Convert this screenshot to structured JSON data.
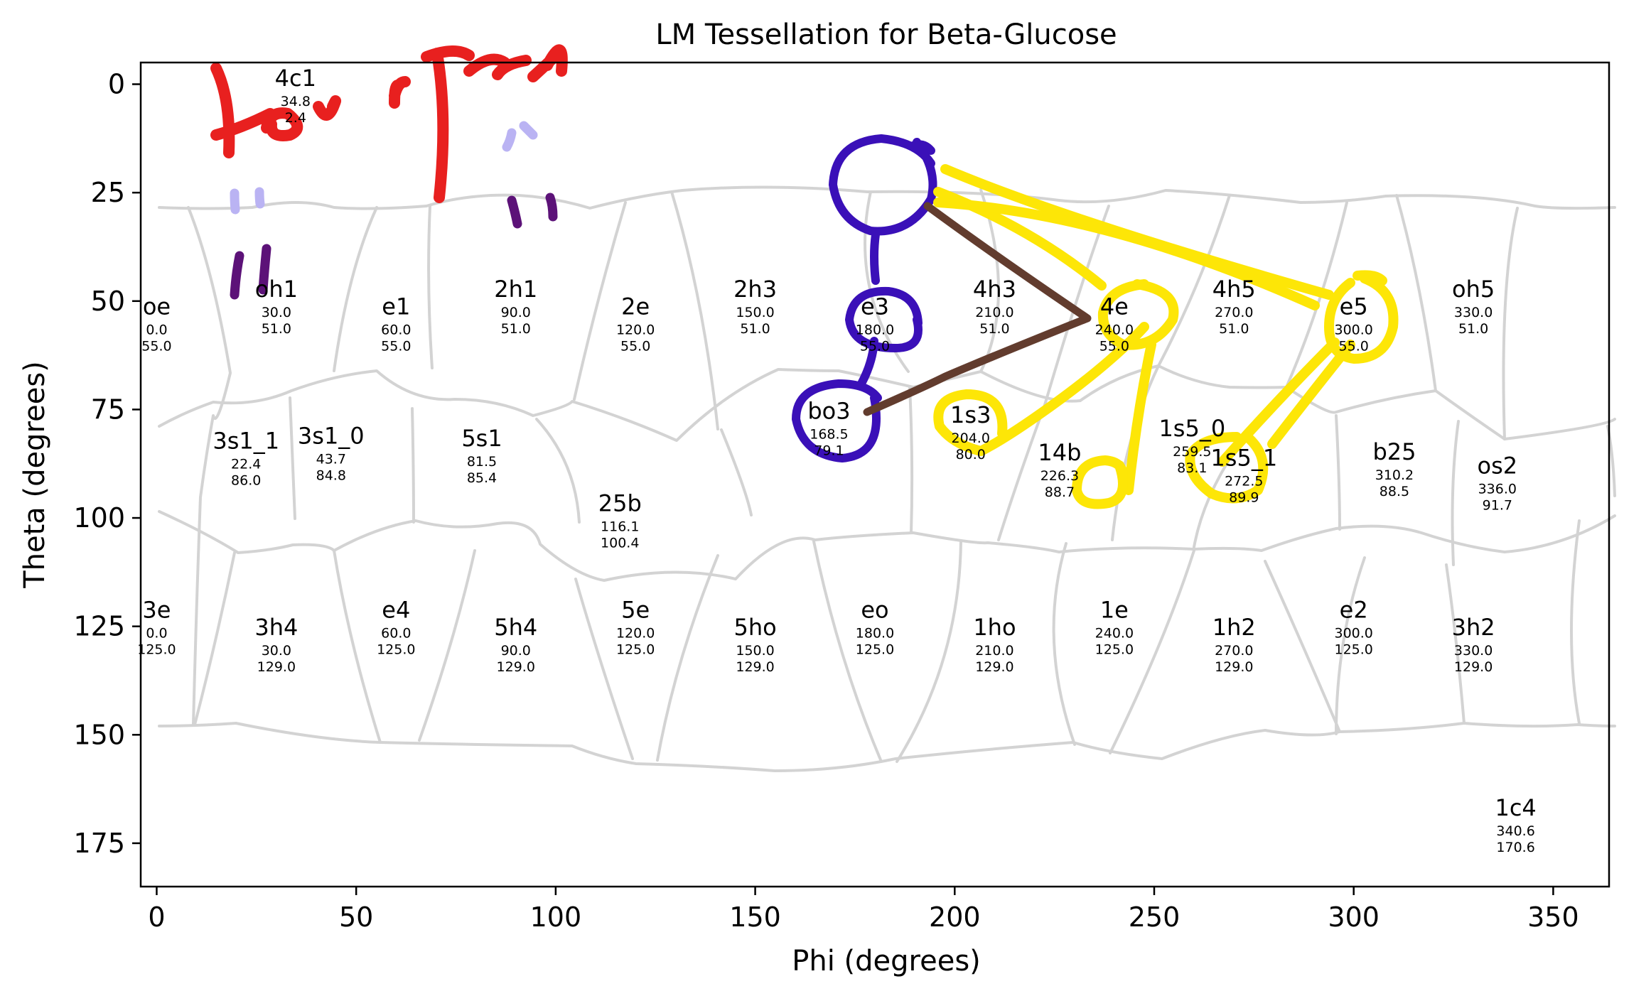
{
  "chart_data": {
    "type": "scatter",
    "title": "LM Tessellation for Beta-Glucose",
    "xlabel": "Phi (degrees)",
    "ylabel": "Theta (degrees)",
    "xlim": [
      -4,
      364
    ],
    "ylim": [
      185,
      -5
    ],
    "y_inverted": true,
    "xticks": [
      0,
      50,
      100,
      150,
      200,
      250,
      300,
      350
    ],
    "yticks": [
      0,
      25,
      50,
      75,
      100,
      125,
      150,
      175
    ],
    "grid": false,
    "legend": "none",
    "boundary_color": "#d3d3d3",
    "points": [
      {
        "name": "oe",
        "phi": "0.0",
        "theta": "55.0"
      },
      {
        "name": "oh1",
        "phi": "30.0",
        "theta": "51.0"
      },
      {
        "name": "e1",
        "phi": "60.0",
        "theta": "55.0"
      },
      {
        "name": "2h1",
        "phi": "90.0",
        "theta": "51.0"
      },
      {
        "name": "2e",
        "phi": "120.0",
        "theta": "55.0"
      },
      {
        "name": "2h3",
        "phi": "150.0",
        "theta": "51.0"
      },
      {
        "name": "e3",
        "phi": "180.0",
        "theta": "55.0"
      },
      {
        "name": "4h3",
        "phi": "210.0",
        "theta": "51.0"
      },
      {
        "name": "4e",
        "phi": "240.0",
        "theta": "55.0"
      },
      {
        "name": "4h5",
        "phi": "270.0",
        "theta": "51.0"
      },
      {
        "name": "e5",
        "phi": "300.0",
        "theta": "55.0"
      },
      {
        "name": "oh5",
        "phi": "330.0",
        "theta": "51.0"
      },
      {
        "name": "4c1",
        "phi": "34.8",
        "theta": "2.4"
      },
      {
        "name": "3s1_1",
        "phi": "22.4",
        "theta": "86.0"
      },
      {
        "name": "3s1_0",
        "phi": "43.7",
        "theta": "84.8"
      },
      {
        "name": "5s1",
        "phi": "81.5",
        "theta": "85.4"
      },
      {
        "name": "25b",
        "phi": "116.1",
        "theta": "100.4"
      },
      {
        "name": "bo3",
        "phi": "168.5",
        "theta": "79.1"
      },
      {
        "name": "1s3",
        "phi": "204.0",
        "theta": "80.0"
      },
      {
        "name": "14b",
        "phi": "226.3",
        "theta": "88.7"
      },
      {
        "name": "1s5_0",
        "phi": "259.5",
        "theta": "83.1"
      },
      {
        "name": "1s5_1",
        "phi": "272.5",
        "theta": "89.9"
      },
      {
        "name": "b25",
        "phi": "310.2",
        "theta": "88.5"
      },
      {
        "name": "os2",
        "phi": "336.0",
        "theta": "91.7"
      },
      {
        "name": "3e",
        "phi": "0.0",
        "theta": "125.0"
      },
      {
        "name": "3h4",
        "phi": "30.0",
        "theta": "129.0"
      },
      {
        "name": "e4",
        "phi": "60.0",
        "theta": "125.0"
      },
      {
        "name": "5h4",
        "phi": "90.0",
        "theta": "129.0"
      },
      {
        "name": "5e",
        "phi": "120.0",
        "theta": "125.0"
      },
      {
        "name": "5ho",
        "phi": "150.0",
        "theta": "129.0"
      },
      {
        "name": "eo",
        "phi": "180.0",
        "theta": "125.0"
      },
      {
        "name": "1ho",
        "phi": "210.0",
        "theta": "129.0"
      },
      {
        "name": "1e",
        "phi": "240.0",
        "theta": "125.0"
      },
      {
        "name": "1h2",
        "phi": "270.0",
        "theta": "129.0"
      },
      {
        "name": "e2",
        "phi": "300.0",
        "theta": "125.0"
      },
      {
        "name": "3h2",
        "phi": "330.0",
        "theta": "129.0"
      },
      {
        "name": "1c4",
        "phi": "340.6",
        "theta": "170.6"
      }
    ],
    "annotation_colors": {
      "handwriting_red": "#e8201f",
      "purple": "#5c1278",
      "lavender": "#bab3f3",
      "indigo": "#3a10b8",
      "brown": "#623c2e",
      "yellow": "#fde607"
    }
  }
}
